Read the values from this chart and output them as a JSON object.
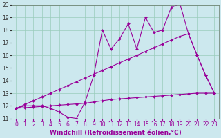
{
  "xlabel": "Windchill (Refroidissement éolien,°C)",
  "bg_color": "#cce8ee",
  "line_color": "#990099",
  "x_data": [
    0,
    1,
    2,
    3,
    4,
    5,
    6,
    7,
    8,
    9,
    10,
    11,
    12,
    13,
    14,
    15,
    16,
    17,
    18,
    19,
    20,
    21,
    22,
    23
  ],
  "y_main": [
    11.8,
    12.0,
    12.0,
    12.0,
    11.8,
    11.5,
    11.1,
    11.0,
    12.3,
    14.4,
    18.0,
    16.5,
    17.3,
    18.5,
    16.5,
    19.0,
    17.8,
    18.0,
    19.8,
    20.1,
    17.7,
    16.0,
    14.4,
    13.0
  ],
  "y_upper": [
    11.8,
    12.1,
    12.4,
    12.7,
    13.0,
    13.3,
    13.6,
    13.9,
    14.2,
    14.5,
    14.8,
    15.1,
    15.4,
    15.7,
    16.0,
    16.3,
    16.6,
    16.9,
    17.2,
    17.5,
    17.7,
    16.0,
    14.4,
    13.0
  ],
  "y_lower": [
    11.8,
    11.85,
    11.9,
    11.95,
    12.0,
    12.05,
    12.1,
    12.15,
    12.2,
    12.3,
    12.4,
    12.5,
    12.55,
    12.6,
    12.65,
    12.7,
    12.75,
    12.8,
    12.85,
    12.9,
    12.95,
    13.0,
    13.0,
    13.0
  ],
  "ylim": [
    11,
    20
  ],
  "xlim": [
    -0.5,
    23.5
  ],
  "yticks": [
    11,
    12,
    13,
    14,
    15,
    16,
    17,
    18,
    19,
    20
  ],
  "xticks": [
    0,
    1,
    2,
    3,
    4,
    5,
    6,
    7,
    8,
    9,
    10,
    11,
    12,
    13,
    14,
    15,
    16,
    17,
    18,
    19,
    20,
    21,
    22,
    23
  ],
  "grid_color": "#99ccbb",
  "marker": "D",
  "markersize": 2.0,
  "linewidth": 0.8,
  "xlabel_fontsize": 6.5,
  "tick_fontsize": 5.5
}
